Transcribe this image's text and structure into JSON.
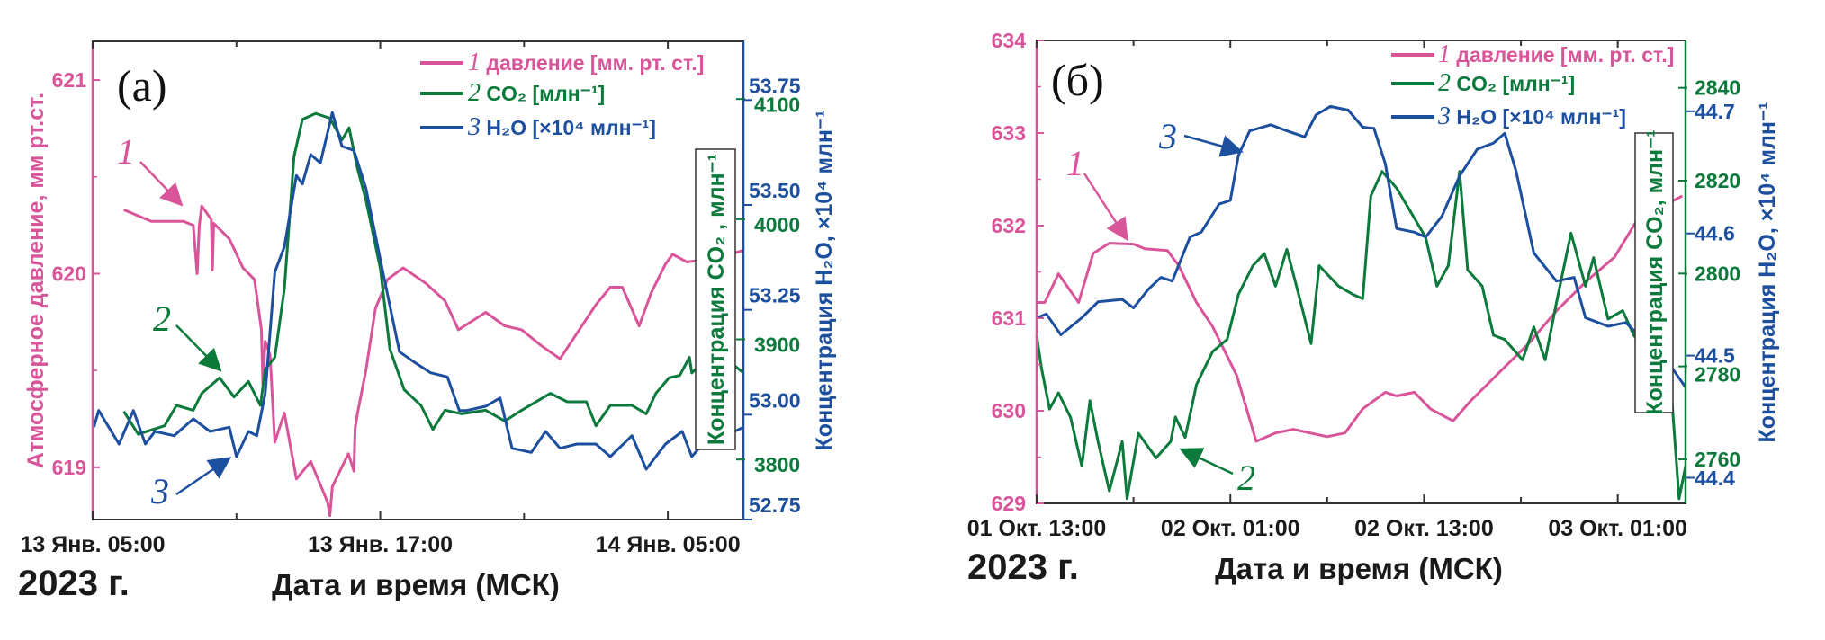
{
  "colors": {
    "pressure": "#d9559a",
    "co2": "#0b7a3b",
    "h2o": "#1d4f9f",
    "text": "#1a1a1a"
  },
  "chart_data": [
    {
      "type": "line",
      "panel_label": "(а)",
      "year_label": "2023 г.",
      "xlabel": "Дата и время (МСК)",
      "ylabel_left": "Атмосферное давление, мм рт.ст.",
      "ylabel_right_co2": "Концентрация CO₂ , млн⁻¹",
      "ylabel_right_h2o": "Концентрация H₂O, ×10⁴ млн⁻¹",
      "x_unit": "hours since 13 Jan 2023 00:00",
      "xlim": [
        5,
        32.15
      ],
      "x_ticks": [
        {
          "hour": 5,
          "label": "13 Янв. 05:00"
        },
        {
          "hour": 17,
          "label": "13 Янв. 17:00"
        },
        {
          "hour": 29,
          "label": "14 Янв. 05:00"
        }
      ],
      "x_minor_ticks": [
        11,
        23
      ],
      "ylim_pressure": [
        618.73,
        621.2
      ],
      "pressure_ticks": [
        "619",
        "620",
        "621"
      ],
      "ylim_co2": [
        3750,
        4148
      ],
      "co2_ticks": [
        "3800",
        "3900",
        "4000",
        "4100"
      ],
      "ylim_h2o": [
        52.75,
        53.89
      ],
      "h2o_ticks": [
        "52.75",
        "53.00",
        "53.25",
        "53.50",
        "53.75"
      ],
      "legend": [
        {
          "num": "1",
          "label": "давление [мм. рт. ст.]",
          "series": "pressure"
        },
        {
          "num": "2",
          "label": "CO₂ [млн⁻¹]",
          "series": "co2"
        },
        {
          "num": "3",
          "label": "H₂O [×10⁴ млн⁻¹]",
          "series": "h2o"
        }
      ],
      "annotations": [
        "1",
        "2",
        "3"
      ],
      "series": [
        {
          "name": "pressure",
          "x": [
            6.3,
            7.45,
            8.8,
            9.2,
            9.36,
            9.45,
            9.55,
            9.95,
            10.0,
            10.05,
            10.7,
            11.27,
            11.75,
            12.04,
            12.1,
            12.2,
            12.4,
            12.6,
            13.0,
            13.5,
            14.1,
            14.8,
            14.9,
            15.0,
            15.67,
            15.9,
            15.95,
            16.05,
            16.4,
            16.8,
            17.3,
            17.96,
            18.9,
            19.7,
            20.26,
            21.4,
            22.2,
            22.9,
            23.7,
            24.5,
            25.2,
            26.0,
            26.6,
            27.1,
            27.8,
            28.3,
            28.9,
            29.2,
            29.8,
            31.0,
            32.15
          ],
          "y": [
            620.33,
            620.27,
            620.27,
            620.25,
            620.0,
            620.25,
            620.35,
            620.28,
            620.02,
            620.26,
            620.18,
            620.03,
            619.97,
            619.71,
            619.43,
            619.65,
            619.58,
            619.13,
            619.28,
            618.94,
            619.03,
            618.82,
            618.75,
            618.9,
            619.07,
            618.98,
            619.2,
            619.28,
            619.5,
            619.82,
            619.97,
            620.03,
            619.95,
            619.86,
            619.71,
            619.8,
            619.73,
            619.71,
            619.63,
            619.56,
            619.69,
            619.84,
            619.93,
            619.93,
            619.73,
            619.9,
            620.05,
            620.1,
            620.06,
            620.08,
            620.12
          ]
        },
        {
          "name": "co2",
          "x": [
            6.3,
            6.9,
            8.0,
            8.5,
            9.2,
            9.55,
            10.3,
            10.9,
            11.5,
            12.0,
            12.2,
            12.6,
            13.0,
            13.4,
            13.75,
            14.3,
            14.9,
            15.4,
            15.7,
            16.05,
            16.4,
            17.0,
            17.4,
            18.0,
            18.7,
            19.2,
            19.7,
            20.4,
            21.4,
            22.2,
            22.9,
            24.1,
            24.8,
            25.6,
            26.0,
            26.6,
            27.5,
            28.1,
            28.5,
            29.05,
            29.5,
            29.9,
            30.0,
            31.0,
            32.15
          ],
          "y": [
            3840,
            3821,
            3828,
            3845,
            3841,
            3855,
            3868,
            3852,
            3865,
            3845,
            3875,
            3885,
            3942,
            4052,
            4083,
            4088,
            4084,
            4066,
            4076,
            4042,
            4016,
            3959,
            3892,
            3858,
            3845,
            3825,
            3841,
            3838,
            3841,
            3832,
            3841,
            3855,
            3848,
            3848,
            3828,
            3845,
            3845,
            3838,
            3855,
            3868,
            3870,
            3885,
            3872,
            3891,
            3872
          ]
        },
        {
          "name": "h2o",
          "x": [
            5.05,
            5.25,
            6.1,
            6.7,
            7.2,
            7.6,
            8.4,
            9.2,
            9.9,
            10.7,
            11.0,
            11.5,
            11.85,
            12.2,
            12.6,
            13.0,
            13.5,
            13.75,
            14.1,
            14.5,
            15.0,
            15.4,
            15.9,
            16.4,
            17.0,
            17.4,
            17.8,
            18.3,
            19.1,
            19.8,
            20.3,
            20.6,
            21.4,
            22.0,
            22.5,
            23.3,
            23.9,
            24.5,
            25.2,
            26.0,
            26.6,
            27.5,
            28.1,
            28.9,
            29.6,
            30.0,
            30.3,
            32.15
          ],
          "y": [
            52.97,
            53.01,
            52.93,
            53.01,
            52.93,
            52.96,
            52.95,
            52.99,
            52.96,
            52.97,
            52.9,
            52.96,
            52.95,
            53.05,
            53.34,
            53.4,
            53.57,
            53.55,
            53.62,
            53.6,
            53.72,
            53.64,
            53.63,
            53.54,
            53.37,
            53.26,
            53.15,
            53.13,
            53.1,
            53.09,
            53.01,
            53.01,
            53.02,
            53.04,
            52.92,
            52.91,
            52.96,
            52.92,
            52.93,
            52.93,
            52.9,
            52.95,
            52.87,
            52.93,
            52.96,
            52.9,
            52.92,
            52.97
          ]
        }
      ]
    },
    {
      "type": "line",
      "panel_label": "(б)",
      "year_label": "2023 г.",
      "xlabel": "Дата и время (МСК)",
      "ylabel_right_co2": "Концентрация CO₂, млн⁻¹",
      "ylabel_right_h2o": "Концентрация H₂O, ×10⁴ млн⁻¹",
      "x_unit": "hours since 01 Oct 2023 00:00",
      "xlim": [
        13,
        53.2
      ],
      "x_ticks": [
        {
          "hour": 13,
          "label": "01 Окт. 13:00"
        },
        {
          "hour": 25,
          "label": "02 Окт. 01:00"
        },
        {
          "hour": 37,
          "label": "02 Окт. 13:00"
        },
        {
          "hour": 49,
          "label": "03 Окт. 01:00"
        }
      ],
      "x_minor_ticks": [
        19,
        31,
        43
      ],
      "ylim_pressure": [
        629,
        634
      ],
      "pressure_ticks": [
        "629",
        "630",
        "631",
        "632",
        "633",
        "634"
      ],
      "ylim_co2": [
        2750.5,
        2850.2
      ],
      "co2_ticks": [
        "2760",
        "2780",
        "2800",
        "2820",
        "2840"
      ],
      "ylim_h2o": [
        44.379,
        44.758
      ],
      "h2o_ticks": [
        "44.4",
        "44.5",
        "44.6",
        "44.7"
      ],
      "legend": [
        {
          "num": "1",
          "label": "давление [мм. рт. ст.]",
          "series": "pressure"
        },
        {
          "num": "2",
          "label": "CO₂ [млн⁻¹]",
          "series": "co2"
        },
        {
          "num": "3",
          "label": "H₂O [×10⁴ млн⁻¹]",
          "series": "h2o"
        }
      ],
      "annotations": [
        "1",
        "2",
        "3"
      ],
      "series": [
        {
          "name": "pressure",
          "x": [
            13,
            13.5,
            14.35,
            15.6,
            16.5,
            17.5,
            19.0,
            19.7,
            21.1,
            21.8,
            22.9,
            23.9,
            25.4,
            26.6,
            27.8,
            28.9,
            31.0,
            32.1,
            33.2,
            34.6,
            35.3,
            36.4,
            37.4,
            38.8,
            39.9,
            41.7,
            43.5,
            45.2,
            47.0,
            48.8,
            50.2,
            52.0,
            53.0
          ],
          "y": [
            631.17,
            631.17,
            631.48,
            631.17,
            631.7,
            631.81,
            631.8,
            631.75,
            631.73,
            631.57,
            631.17,
            630.91,
            630.38,
            629.67,
            629.76,
            629.8,
            629.72,
            629.76,
            630.02,
            630.2,
            630.16,
            630.2,
            630.02,
            629.89,
            630.11,
            630.42,
            630.73,
            631.08,
            631.39,
            631.66,
            632.06,
            632.23,
            632.32
          ]
        },
        {
          "name": "co2",
          "x": [
            13.0,
            13.3,
            13.8,
            14.35,
            15.1,
            15.8,
            16.3,
            16.8,
            17.5,
            18.3,
            18.6,
            19.3,
            20.4,
            21.3,
            21.6,
            22.2,
            22.9,
            23.9,
            24.8,
            25.5,
            26.4,
            27.1,
            27.8,
            28.5,
            29.3,
            30.0,
            30.5,
            31.7,
            32.6,
            33.2,
            33.7,
            34.4,
            35.3,
            36.2,
            37.1,
            37.8,
            38.5,
            39.2,
            39.7,
            40.6,
            41.3,
            42.0,
            43.1,
            43.8,
            44.5,
            45.2,
            46.1,
            47.0,
            47.5,
            48.4,
            49.3,
            50.0,
            52.3,
            52.8,
            53.2
          ],
          "y": [
            2786.7,
            2779.6,
            2770.8,
            2774.3,
            2769,
            2758.5,
            2772.6,
            2763.8,
            2753.2,
            2763.8,
            2751.5,
            2765.6,
            2760.3,
            2763.8,
            2769.1,
            2764.7,
            2776.1,
            2783.2,
            2785.8,
            2795.5,
            2801.7,
            2804.3,
            2797.3,
            2805.2,
            2794.6,
            2784.9,
            2801.7,
            2797.3,
            2795.5,
            2794.6,
            2816.7,
            2822,
            2818.4,
            2813.1,
            2807.8,
            2797.3,
            2801.7,
            2822,
            2800.8,
            2797.3,
            2786.7,
            2785.8,
            2781.4,
            2788.5,
            2781.4,
            2793.7,
            2808.7,
            2797.3,
            2803.4,
            2790.2,
            2792,
            2786.7,
            2775.2,
            2751.5,
            2758.5
          ]
        },
        {
          "name": "h2o",
          "x": [
            13,
            13.6,
            14.5,
            15.8,
            16.8,
            18.3,
            19.0,
            19.9,
            20.7,
            21.4,
            22.5,
            23.2,
            24.3,
            25.0,
            25.5,
            26.2,
            27.5,
            28.5,
            29.6,
            30.3,
            31.2,
            32.3,
            33.2,
            33.9,
            34.6,
            35.3,
            36.4,
            37.1,
            38.1,
            39.2,
            40.3,
            41.3,
            42.0,
            42.7,
            43.8,
            45.2,
            46.3,
            47.0,
            48.4,
            49.5,
            52.3,
            53.2
          ],
          "y": [
            44.531,
            44.534,
            44.517,
            44.531,
            44.544,
            44.546,
            44.539,
            44.554,
            44.564,
            44.561,
            44.597,
            44.601,
            44.624,
            44.627,
            44.664,
            44.684,
            44.689,
            44.684,
            44.679,
            44.697,
            44.704,
            44.701,
            44.687,
            44.686,
            44.657,
            44.604,
            44.601,
            44.597,
            44.614,
            44.647,
            44.669,
            44.674,
            44.682,
            44.651,
            44.584,
            44.561,
            44.564,
            44.531,
            44.524,
            44.527,
            44.491,
            44.474
          ]
        }
      ]
    }
  ]
}
